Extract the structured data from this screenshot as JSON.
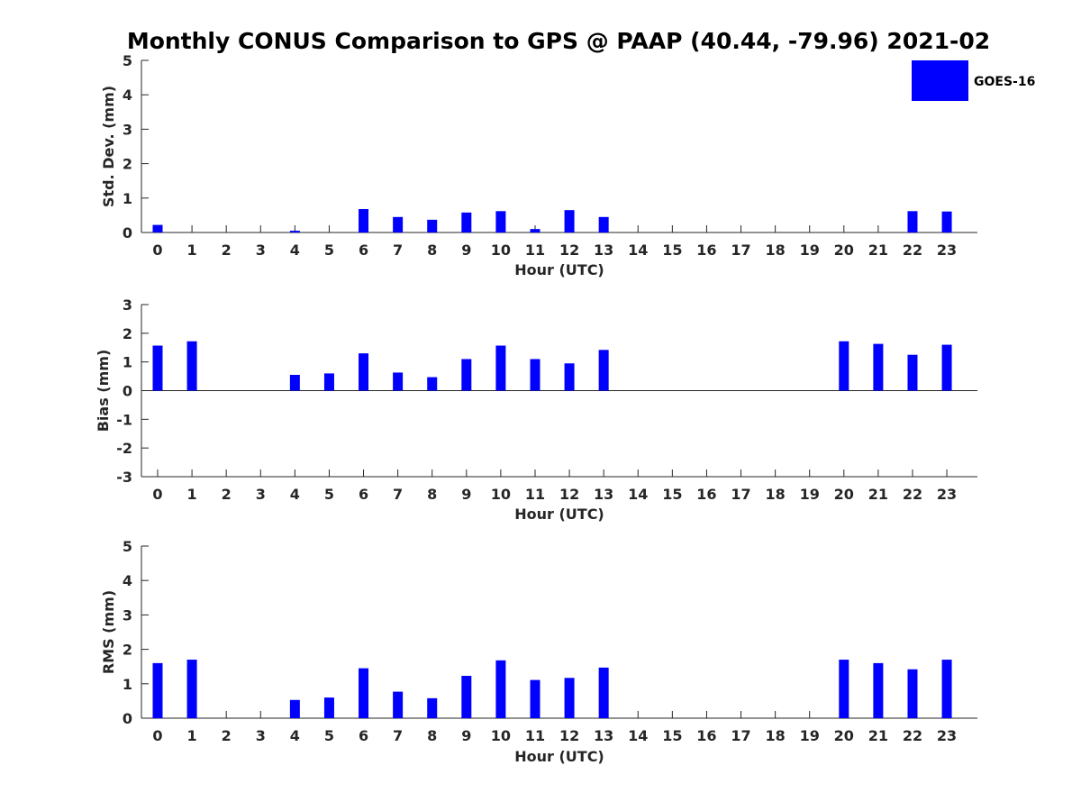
{
  "title": "Monthly CONUS Comparison to GPS @ PAAP (40.44, -79.96) 2021-02",
  "legend": {
    "label": "GOES-16",
    "color": "#0000ff"
  },
  "bar_color": "#0000ff",
  "chart_data": [
    {
      "type": "bar",
      "title": "Monthly CONUS Comparison to GPS @ PAAP (40.44, -79.96) 2021-02",
      "xlabel": "Hour (UTC)",
      "ylabel": "Std. Dev. (mm)",
      "ylim": [
        0,
        5
      ],
      "yticks": [
        0,
        1,
        2,
        3,
        4,
        5
      ],
      "categories": [
        "0",
        "1",
        "2",
        "3",
        "4",
        "5",
        "6",
        "7",
        "8",
        "9",
        "10",
        "11",
        "12",
        "13",
        "14",
        "15",
        "16",
        "17",
        "18",
        "19",
        "20",
        "21",
        "22",
        "23"
      ],
      "series": [
        {
          "name": "GOES-16",
          "values": [
            0.22,
            null,
            null,
            null,
            0.05,
            null,
            0.68,
            0.45,
            0.37,
            0.58,
            0.62,
            0.1,
            0.65,
            0.45,
            null,
            null,
            null,
            null,
            null,
            null,
            null,
            null,
            0.62,
            0.61
          ]
        }
      ]
    },
    {
      "type": "bar",
      "xlabel": "Hour (UTC)",
      "ylabel": "Bias (mm)",
      "ylim": [
        -3,
        3
      ],
      "yticks": [
        -3,
        -2,
        -1,
        0,
        1,
        2,
        3
      ],
      "categories": [
        "0",
        "1",
        "2",
        "3",
        "4",
        "5",
        "6",
        "7",
        "8",
        "9",
        "10",
        "11",
        "12",
        "13",
        "14",
        "15",
        "16",
        "17",
        "18",
        "19",
        "20",
        "21",
        "22",
        "23"
      ],
      "series": [
        {
          "name": "GOES-16",
          "values": [
            1.57,
            1.72,
            null,
            null,
            0.55,
            0.6,
            1.3,
            0.63,
            0.47,
            1.1,
            1.57,
            1.1,
            0.95,
            1.42,
            null,
            null,
            null,
            null,
            null,
            null,
            1.72,
            1.63,
            1.25,
            1.6
          ]
        }
      ]
    },
    {
      "type": "bar",
      "xlabel": "Hour (UTC)",
      "ylabel": "RMS (mm)",
      "ylim": [
        0,
        5
      ],
      "yticks": [
        0,
        1,
        2,
        3,
        4,
        5
      ],
      "categories": [
        "0",
        "1",
        "2",
        "3",
        "4",
        "5",
        "6",
        "7",
        "8",
        "9",
        "10",
        "11",
        "12",
        "13",
        "14",
        "15",
        "16",
        "17",
        "18",
        "19",
        "20",
        "21",
        "22",
        "23"
      ],
      "series": [
        {
          "name": "GOES-16",
          "values": [
            1.6,
            1.7,
            null,
            null,
            0.53,
            0.6,
            1.45,
            0.77,
            0.58,
            1.23,
            1.68,
            1.11,
            1.17,
            1.47,
            null,
            null,
            null,
            null,
            null,
            null,
            1.7,
            1.6,
            1.42,
            1.7
          ]
        }
      ]
    }
  ]
}
